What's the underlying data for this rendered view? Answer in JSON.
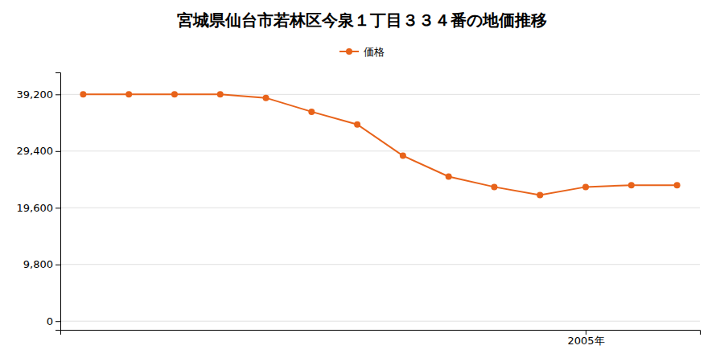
{
  "chart_data": {
    "type": "line",
    "title": "宮城県仙台市若林区今泉１丁目３３４番の地価推移",
    "x": [
      1994,
      1995,
      1996,
      1997,
      1998,
      1999,
      2000,
      2001,
      2002,
      2003,
      2004,
      2005,
      2006,
      2007
    ],
    "series": [
      {
        "name": "価格",
        "color": "#e8631a",
        "marker": "circle",
        "values": [
          39200,
          39200,
          39200,
          39200,
          38600,
          36200,
          34000,
          28600,
          25000,
          23200,
          21800,
          23200,
          23500,
          23500
        ]
      }
    ],
    "xlim": [
      1993.5,
      2007.5
    ],
    "xticks": [
      {
        "value": 2005,
        "label": "2005年"
      }
    ],
    "ylim": [
      -1500,
      43000
    ],
    "yticks": [
      0,
      {
        "value": 9800,
        "label": "9,800"
      },
      {
        "value": 19600,
        "label": "19,600"
      },
      {
        "value": 29400,
        "label": "29,400"
      },
      {
        "value": 39200,
        "label": "39,200"
      }
    ],
    "grid": true,
    "legend": "top"
  }
}
